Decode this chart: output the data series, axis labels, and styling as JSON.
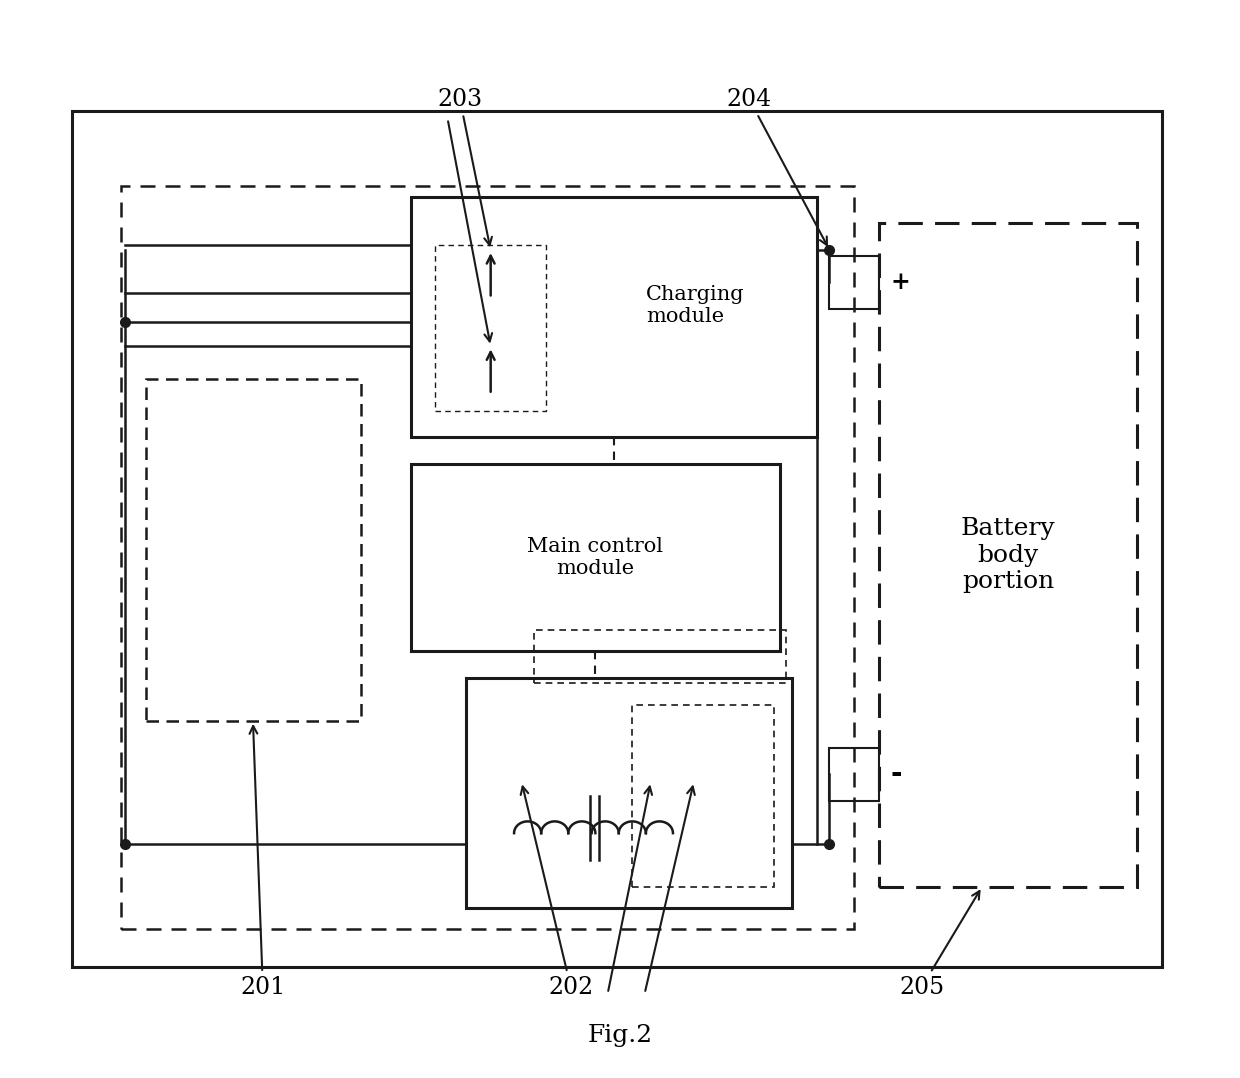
{
  "fig_label": "Fig.2",
  "bg_color": "#ffffff",
  "lc": "#1a1a1a",
  "lw_main": 1.8,
  "lw_thick": 2.2,
  "label_fontsize": 15,
  "ann_fontsize": 17,
  "charging_module_text": "Charging\nmodule",
  "main_control_text": "Main control\nmodule",
  "battery_text": "Battery\nbody\nportion",
  "plus_text": "+",
  "minus_text": "-",
  "fig_text": "Fig.2"
}
